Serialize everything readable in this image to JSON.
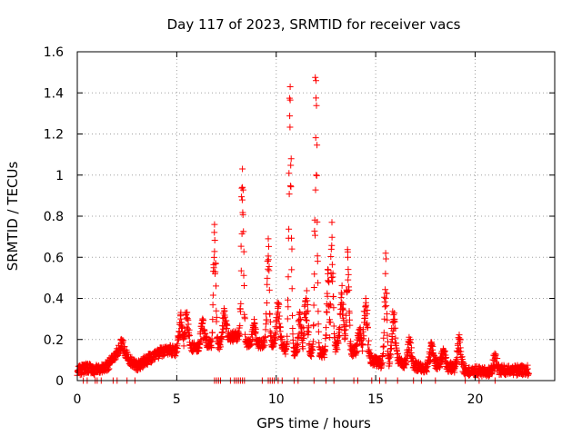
{
  "chart_data": {
    "type": "scatter",
    "title": "Day 117 of 2023, SRMTID for receiver vacs",
    "xlabel": "GPS time / hours",
    "ylabel": "SRMTID / TECUs",
    "xlim": [
      0,
      24
    ],
    "ylim": [
      0,
      1.6
    ],
    "xticks": [
      0,
      5,
      10,
      15,
      20
    ],
    "xtick_labels": [
      "0",
      "5",
      "10",
      "15",
      "20"
    ],
    "yticks": [
      0,
      0.2,
      0.4,
      0.6,
      0.8,
      1.0,
      1.2,
      1.4,
      1.6
    ],
    "ytick_labels": [
      "0",
      "0.2",
      "0.4",
      "0.6",
      "0.8",
      "1",
      "1.2",
      "1.4",
      "1.6"
    ],
    "grid": true,
    "marker": "+",
    "marker_color": "#ff0000",
    "series": [
      {
        "name": "vacs",
        "baseline": [
          [
            0,
            0.05
          ],
          [
            0.5,
            0.06
          ],
          [
            1.0,
            0.05
          ],
          [
            1.5,
            0.07
          ],
          [
            2.0,
            0.13
          ],
          [
            2.3,
            0.16
          ],
          [
            2.6,
            0.1
          ],
          [
            3.0,
            0.07
          ],
          [
            3.5,
            0.1
          ],
          [
            4.0,
            0.13
          ],
          [
            4.5,
            0.15
          ],
          [
            5.0,
            0.14
          ],
          [
            5.5,
            0.17
          ],
          [
            6.0,
            0.16
          ],
          [
            6.5,
            0.18
          ],
          [
            7.0,
            0.16
          ],
          [
            7.5,
            0.2
          ],
          [
            8.0,
            0.22
          ],
          [
            8.5,
            0.18
          ],
          [
            9.0,
            0.17
          ],
          [
            9.5,
            0.19
          ],
          [
            10.0,
            0.18
          ],
          [
            10.5,
            0.15
          ],
          [
            11.0,
            0.14
          ],
          [
            11.5,
            0.13
          ],
          [
            12.0,
            0.14
          ],
          [
            12.5,
            0.13
          ],
          [
            13.0,
            0.16
          ],
          [
            13.5,
            0.15
          ],
          [
            14.0,
            0.14
          ],
          [
            14.5,
            0.11
          ],
          [
            15.0,
            0.09
          ],
          [
            15.5,
            0.08
          ],
          [
            16.0,
            0.1
          ],
          [
            16.5,
            0.08
          ],
          [
            17.0,
            0.07
          ],
          [
            17.5,
            0.06
          ],
          [
            18.0,
            0.08
          ],
          [
            18.5,
            0.07
          ],
          [
            19.0,
            0.06
          ],
          [
            19.5,
            0.05
          ],
          [
            20.0,
            0.05
          ],
          [
            20.5,
            0.04
          ],
          [
            21.0,
            0.05
          ],
          [
            21.5,
            0.05
          ],
          [
            22.0,
            0.05
          ],
          [
            22.7,
            0.05
          ]
        ],
        "peaks": [
          {
            "x": 2.2,
            "y": 0.18
          },
          {
            "x": 5.2,
            "y": 0.3
          },
          {
            "x": 5.5,
            "y": 0.33
          },
          {
            "x": 6.3,
            "y": 0.28
          },
          {
            "x": 6.9,
            "y": 0.76
          },
          {
            "x": 7.4,
            "y": 0.34
          },
          {
            "x": 8.3,
            "y": 1.03
          },
          {
            "x": 8.9,
            "y": 0.28
          },
          {
            "x": 9.6,
            "y": 0.69
          },
          {
            "x": 10.1,
            "y": 0.36
          },
          {
            "x": 10.7,
            "y": 1.43
          },
          {
            "x": 11.2,
            "y": 0.3
          },
          {
            "x": 11.5,
            "y": 0.4
          },
          {
            "x": 12.0,
            "y": 1.46
          },
          {
            "x": 12.6,
            "y": 0.52
          },
          {
            "x": 12.8,
            "y": 0.77
          },
          {
            "x": 13.3,
            "y": 0.42
          },
          {
            "x": 13.6,
            "y": 0.6
          },
          {
            "x": 14.2,
            "y": 0.25
          },
          {
            "x": 14.5,
            "y": 0.4
          },
          {
            "x": 15.5,
            "y": 0.62
          },
          {
            "x": 15.9,
            "y": 0.32
          },
          {
            "x": 16.7,
            "y": 0.2
          },
          {
            "x": 17.8,
            "y": 0.17
          },
          {
            "x": 18.4,
            "y": 0.15
          },
          {
            "x": 19.2,
            "y": 0.2
          },
          {
            "x": 21.0,
            "y": 0.11
          }
        ],
        "zero_points": [
          0.3,
          0.5,
          0.9,
          1.0,
          1.2,
          1.8,
          2.0,
          2.5,
          2.9,
          6.9,
          7.0,
          7.1,
          7.2,
          7.7,
          7.9,
          8.0,
          8.1,
          8.2,
          8.3,
          8.4,
          9.3,
          9.6,
          9.7,
          9.8,
          9.9,
          10.1,
          10.3,
          10.9,
          11.1,
          11.9,
          12.5,
          12.9,
          13.9,
          14.1,
          14.8,
          15.2,
          15.5,
          16.1,
          16.9,
          17.3,
          18.0,
          19.5,
          20.2,
          21.0
        ]
      }
    ]
  }
}
